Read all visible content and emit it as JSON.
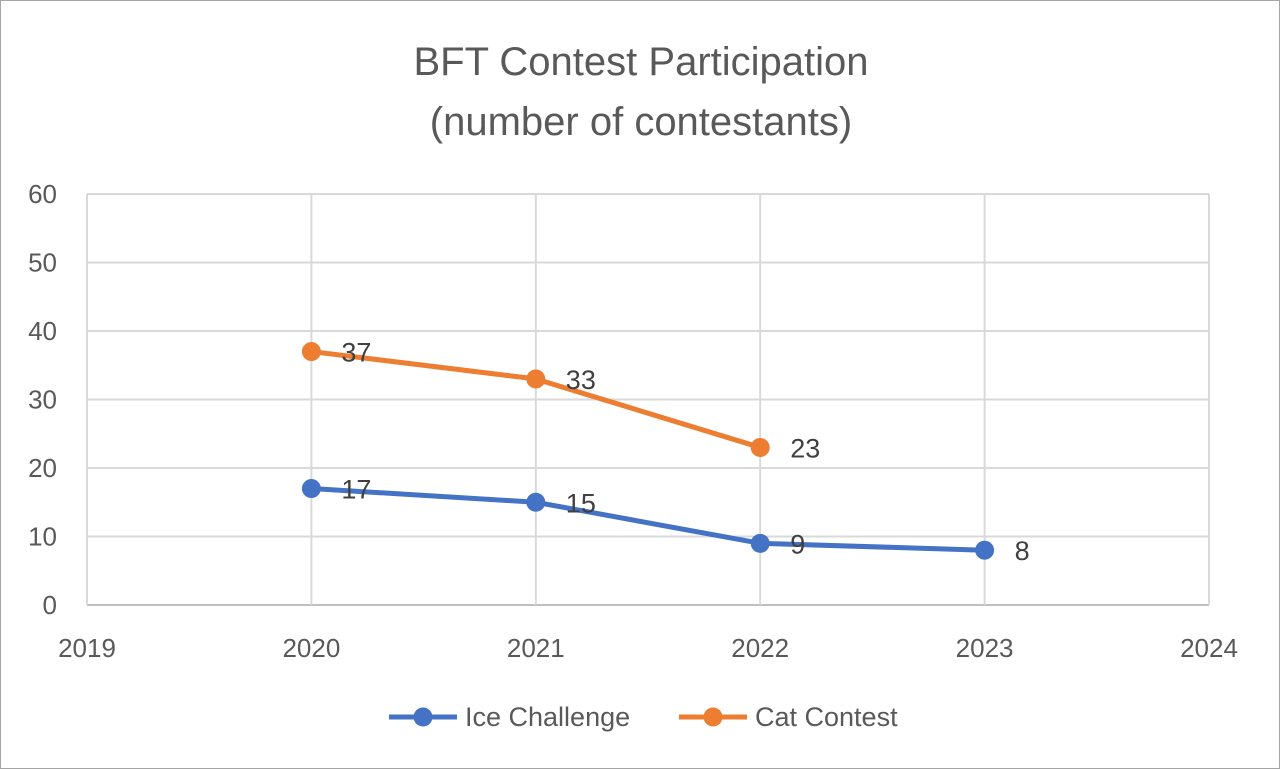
{
  "chart_data": {
    "type": "line",
    "title_lines": [
      "BFT Contest Participation",
      "(number of contestants)"
    ],
    "xlim": [
      2019,
      2024
    ],
    "ylim": [
      0,
      60
    ],
    "x_ticks": [
      "2019",
      "2020",
      "2021",
      "2022",
      "2023",
      "2024"
    ],
    "y_ticks": [
      "0",
      "10",
      "20",
      "30",
      "40",
      "50",
      "60"
    ],
    "grid": true,
    "legend_position": "bottom",
    "series": [
      {
        "name": "Ice Challenge",
        "color": "#4472c4",
        "x": [
          2020,
          2021,
          2022,
          2023
        ],
        "values": [
          17,
          15,
          9,
          8
        ],
        "labels": [
          "17",
          "15",
          "9",
          "8"
        ]
      },
      {
        "name": "Cat Contest",
        "color": "#ed7d31",
        "x": [
          2020,
          2021,
          2022
        ],
        "values": [
          37,
          33,
          23
        ],
        "labels": [
          "37",
          "33",
          "23"
        ]
      }
    ]
  }
}
